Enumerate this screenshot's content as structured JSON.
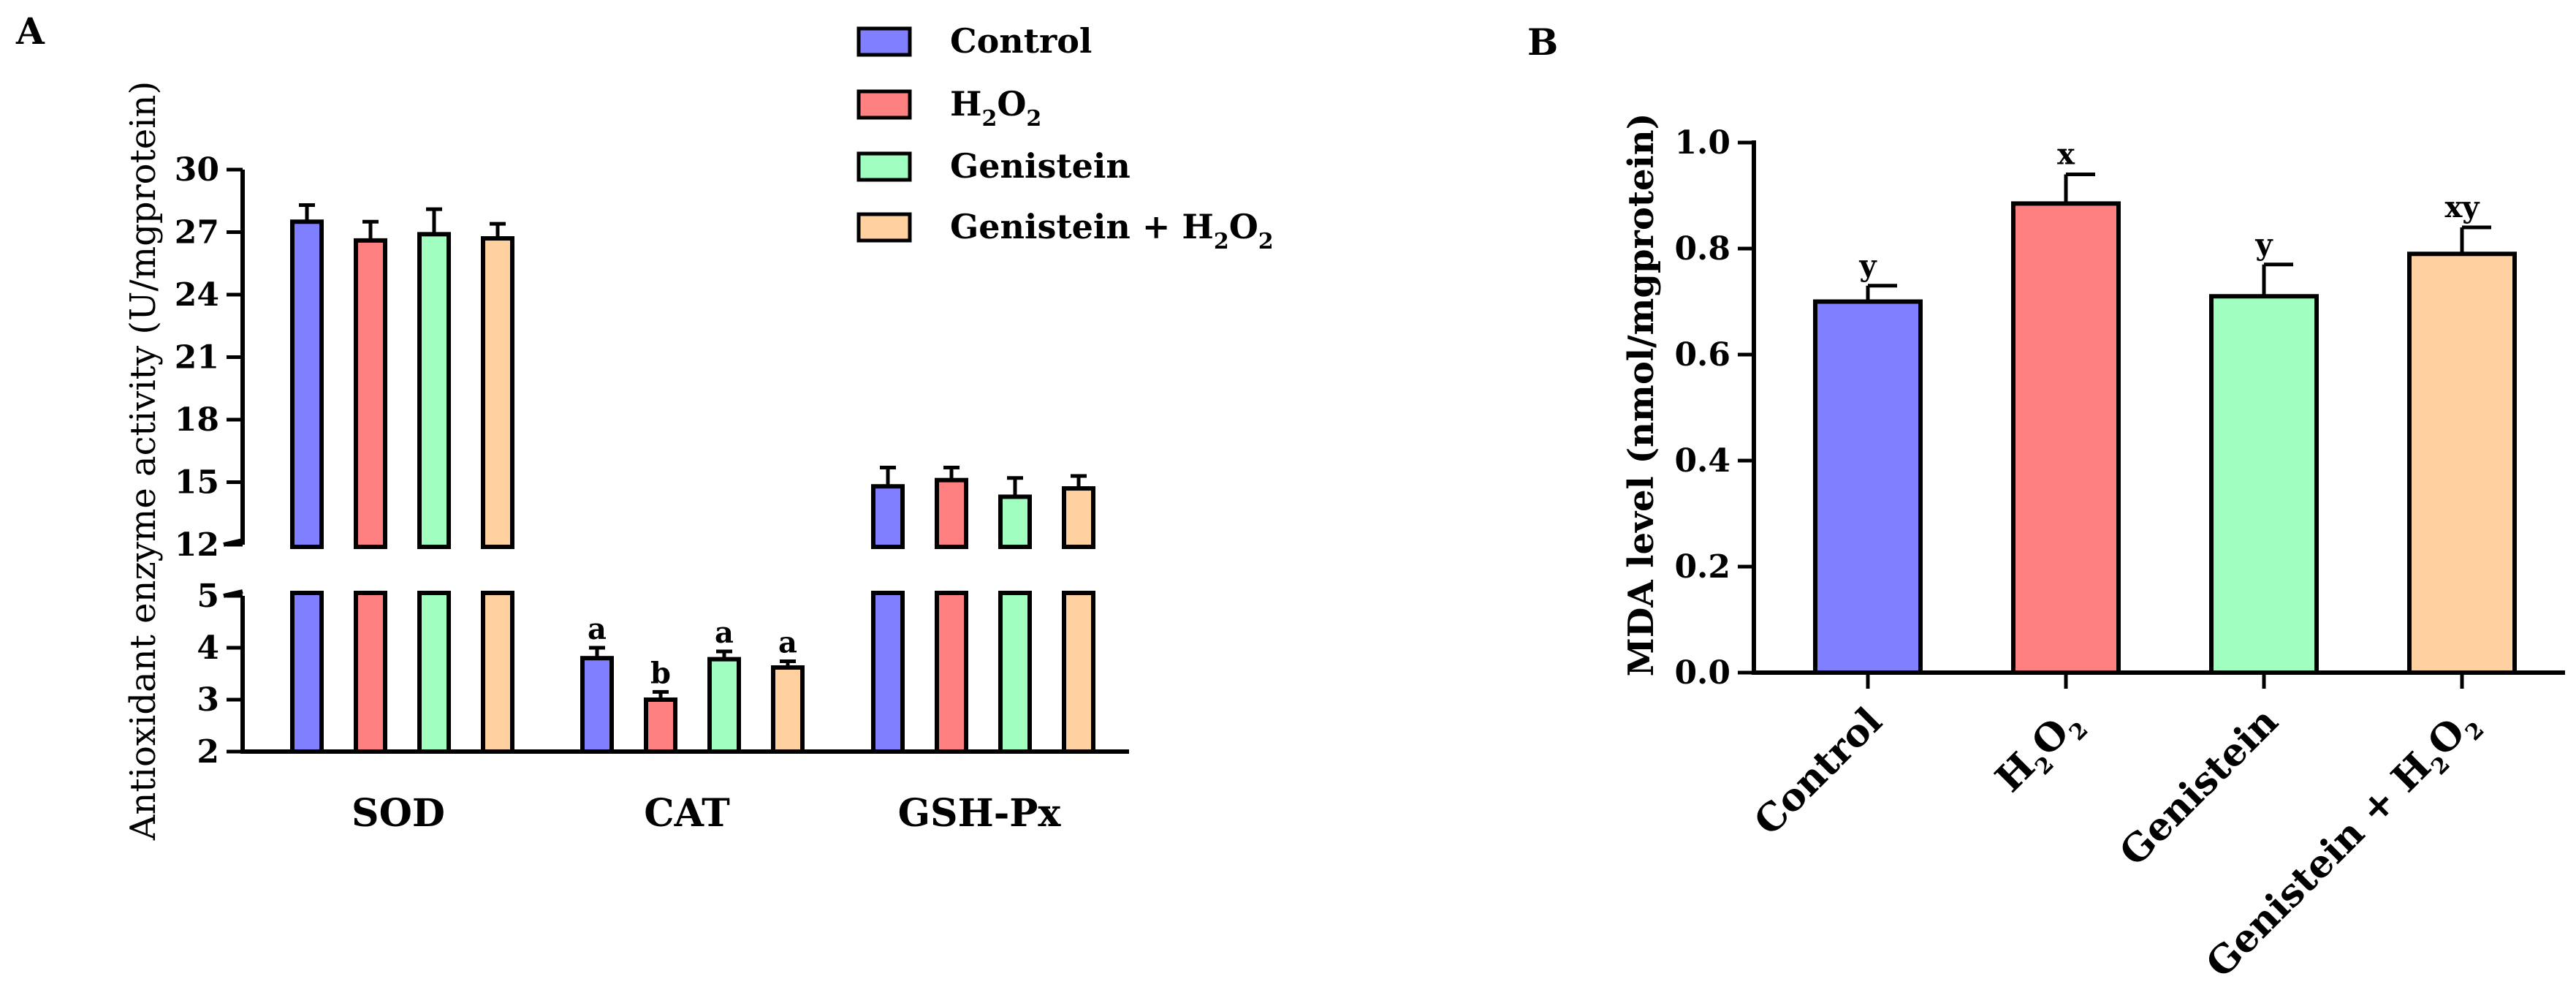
{
  "chart_data": [
    {
      "panel": "A",
      "type": "bar",
      "ylabel": "Antioxidant enzyme activity (U/mgprotein)",
      "categories": [
        "SOD",
        "CAT",
        "GSH-Px"
      ],
      "y_axis_break": {
        "lower_range": [
          2,
          5
        ],
        "upper_range": [
          12,
          30
        ]
      },
      "yticks_lower": [
        2,
        3,
        4,
        5
      ],
      "yticks_upper": [
        12,
        15,
        18,
        21,
        24,
        27,
        30
      ],
      "legend": [
        {
          "name": "Control",
          "color": "#7f7fff"
        },
        {
          "name": "H2O2",
          "base": "H",
          "sub1": "2",
          "mid": "O",
          "sub2": "2",
          "color": "#ff8080"
        },
        {
          "name": "Genistein",
          "color": "#a0ffc0"
        },
        {
          "name": "Genistein + H2O2",
          "base": "Genistein + H",
          "sub1": "2",
          "mid": "O",
          "sub2": "2",
          "color": "#ffd0a0"
        }
      ],
      "series": [
        {
          "name": "Control",
          "color": "#7f7fff",
          "values": [
            27.5,
            3.8,
            14.8
          ],
          "errors": [
            0.8,
            0.2,
            0.9
          ],
          "labels": [
            "",
            "a",
            ""
          ]
        },
        {
          "name": "H2O2",
          "color": "#ff8080",
          "values": [
            26.6,
            3.0,
            15.1
          ],
          "errors": [
            0.9,
            0.15,
            0.6
          ],
          "labels": [
            "",
            "b",
            ""
          ]
        },
        {
          "name": "Genistein",
          "color": "#a0ffc0",
          "values": [
            26.9,
            3.78,
            14.3
          ],
          "errors": [
            1.2,
            0.15,
            0.9
          ],
          "labels": [
            "",
            "a",
            ""
          ]
        },
        {
          "name": "Genistein + H2O2",
          "color": "#ffd0a0",
          "values": [
            26.7,
            3.62,
            14.7
          ],
          "errors": [
            0.7,
            0.12,
            0.6
          ],
          "labels": [
            "",
            "a",
            ""
          ]
        }
      ]
    },
    {
      "panel": "B",
      "type": "bar",
      "ylabel": "MDA level (nmol/mgprotein)",
      "ylim": [
        0,
        1.0
      ],
      "yticks": [
        "0.0",
        "0.2",
        "0.4",
        "0.6",
        "0.8",
        "1.0"
      ],
      "categories": [
        {
          "name": "Control"
        },
        {
          "name": "H2O2",
          "base": "H",
          "sub1": "2",
          "mid": "O",
          "sub2": "2"
        },
        {
          "name": "Genistein"
        },
        {
          "name": "Genistein + H2O2",
          "base": "Genistein + H",
          "sub1": "2",
          "mid": "O",
          "sub2": "2"
        }
      ],
      "values": [
        0.7,
        0.885,
        0.71,
        0.79
      ],
      "errors": [
        0.03,
        0.055,
        0.06,
        0.05
      ],
      "labels": [
        "y",
        "x",
        "y",
        "xy"
      ],
      "colors": [
        "#7f7fff",
        "#ff8080",
        "#a0ffc0",
        "#ffd0a0"
      ]
    }
  ],
  "panel_labels": {
    "a": "A",
    "b": "B"
  }
}
